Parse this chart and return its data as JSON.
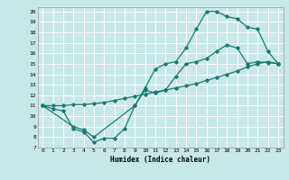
{
  "background_color": "#c8e8e8",
  "grid_color": "#ffffff",
  "line_color": "#1a7a6e",
  "xlabel": "Humidex (Indice chaleur)",
  "xlim": [
    -0.5,
    23.5
  ],
  "ylim": [
    7,
    20.4
  ],
  "line1_x": [
    0,
    1,
    2,
    3,
    4,
    5,
    6,
    7,
    8,
    9,
    10,
    11,
    12,
    13,
    14,
    15,
    16,
    17,
    18,
    19,
    20,
    21,
    22,
    23
  ],
  "line1_y": [
    11,
    10.7,
    10.5,
    8.8,
    8.5,
    7.5,
    7.9,
    7.9,
    8.8,
    11.0,
    12.5,
    12.2,
    12.5,
    13.8,
    15.0,
    15.2,
    15.5,
    16.2,
    16.8,
    16.5,
    15.0,
    15.2,
    15.1,
    15.0
  ],
  "line2_x": [
    0,
    1,
    2,
    3,
    4,
    5,
    6,
    7,
    8,
    9,
    10,
    11,
    12,
    13,
    14,
    15,
    16,
    17,
    18,
    19,
    20,
    21,
    22,
    23
  ],
  "line2_y": [
    11,
    11.0,
    11.0,
    11.1,
    11.1,
    11.2,
    11.3,
    11.5,
    11.7,
    11.9,
    12.1,
    12.3,
    12.5,
    12.7,
    12.9,
    13.1,
    13.4,
    13.7,
    14.0,
    14.3,
    14.7,
    15.0,
    15.2,
    15.0
  ],
  "line3_x": [
    0,
    3,
    4,
    5,
    9,
    10,
    11,
    12,
    13,
    14,
    15,
    16,
    17,
    18,
    19,
    20,
    21,
    22,
    23
  ],
  "line3_y": [
    11,
    9.0,
    8.7,
    8.0,
    11.0,
    12.7,
    14.5,
    15.0,
    15.2,
    16.5,
    18.3,
    20.0,
    20.0,
    19.5,
    19.3,
    18.5,
    18.3,
    16.2,
    15.0
  ],
  "xticks": [
    0,
    1,
    2,
    3,
    4,
    5,
    6,
    7,
    8,
    9,
    10,
    11,
    12,
    13,
    14,
    15,
    16,
    17,
    18,
    19,
    20,
    21,
    22,
    23
  ],
  "yticks": [
    7,
    8,
    9,
    10,
    11,
    12,
    13,
    14,
    15,
    16,
    17,
    18,
    19,
    20
  ],
  "xlabel_fontsize": 5.5,
  "tick_fontsize": 4.5
}
